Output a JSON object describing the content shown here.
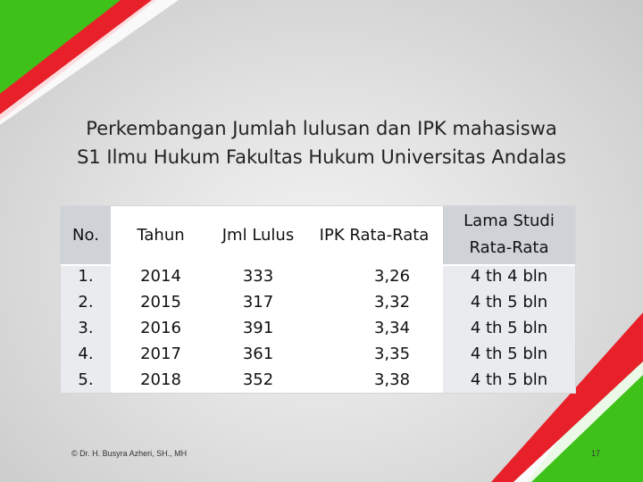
{
  "title": {
    "line1": "Perkembangan Jumlah lulusan dan IPK mahasiswa",
    "line2": "S1 Ilmu Hukum Fakultas Hukum Universitas Andalas"
  },
  "table": {
    "headers": [
      "No.",
      "Tahun",
      "Jml Lulus",
      "IPK Rata-Rata",
      "Lama Studi Rata-Rata"
    ],
    "header_lines": {
      "h5_line1": "Lama Studi",
      "h5_line2": "Rata-Rata"
    },
    "rows": [
      [
        "1.",
        "2014",
        "333",
        "3,26",
        "4 th 4 bln"
      ],
      [
        "2.",
        "2015",
        "317",
        "3,32",
        "4 th 5 bln"
      ],
      [
        "3.",
        "2016",
        "391",
        "3,34",
        "4 th 5 bln"
      ],
      [
        "4.",
        "2017",
        "361",
        "3,35",
        "4 th 5 bln"
      ],
      [
        "5.",
        "2018",
        "352",
        "3,38",
        "4 th 5 bln"
      ]
    ]
  },
  "footer": {
    "author": "© Dr. H. Busyra Azheri, SH., MH",
    "page": "17"
  },
  "colors": {
    "green": "#3ec21a",
    "red": "#e8202a",
    "header_bg": "#cfd3d8",
    "body_bg": "#e9ebee"
  }
}
